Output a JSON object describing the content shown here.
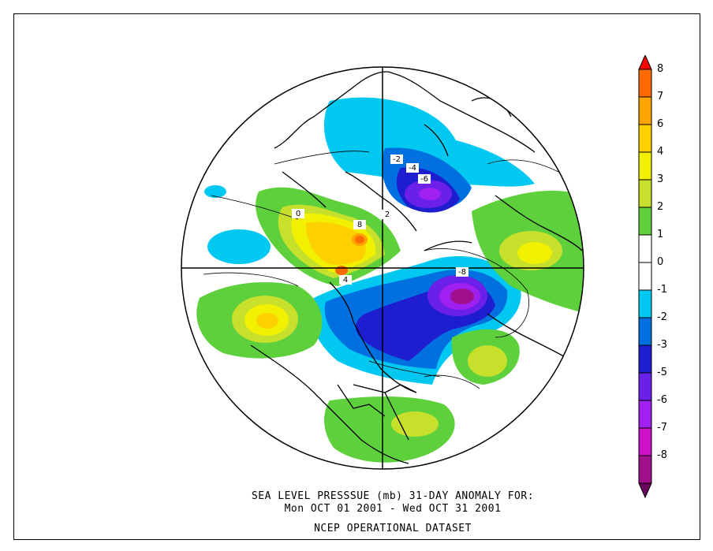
{
  "caption": {
    "line1": "SEA LEVEL PRESSSUE (mb)   31-DAY ANOMALY FOR:",
    "line2": "Mon OCT 01 2001 - Wed OCT 31 2001",
    "line3": "NCEP OPERATIONAL DATASET"
  },
  "legend": {
    "bins": [
      {
        "color": "#ff0000"
      },
      {
        "color": "#ff6a00",
        "label": "8"
      },
      {
        "color": "#ffa500",
        "label": "7"
      },
      {
        "color": "#ffd000",
        "label": "6"
      },
      {
        "color": "#f0f000",
        "label": "4"
      },
      {
        "color": "#c6e02c",
        "label": "3"
      },
      {
        "color": "#5ed03c",
        "label": "2"
      },
      {
        "color": "#ffffff",
        "label": "1"
      },
      {
        "color": "#ffffff",
        "label": "0"
      },
      {
        "color": "#00c8f0",
        "label": "-1"
      },
      {
        "color": "#0070e0",
        "label": "-2"
      },
      {
        "color": "#1e1ed0",
        "label": "-3"
      },
      {
        "color": "#6a20e8",
        "label": "-5"
      },
      {
        "color": "#a020f0",
        "label": "-6"
      },
      {
        "color": "#d010c8",
        "label": "-7"
      },
      {
        "color": "#a0108c",
        "label": "-8"
      },
      {
        "color": "#6a0060"
      }
    ]
  },
  "map_labels": [
    {
      "text": "8"
    },
    {
      "text": "-6"
    },
    {
      "text": "-8"
    },
    {
      "text": "-4"
    },
    {
      "text": "-2"
    },
    {
      "text": "2"
    },
    {
      "text": "0"
    },
    {
      "text": "4"
    }
  ]
}
